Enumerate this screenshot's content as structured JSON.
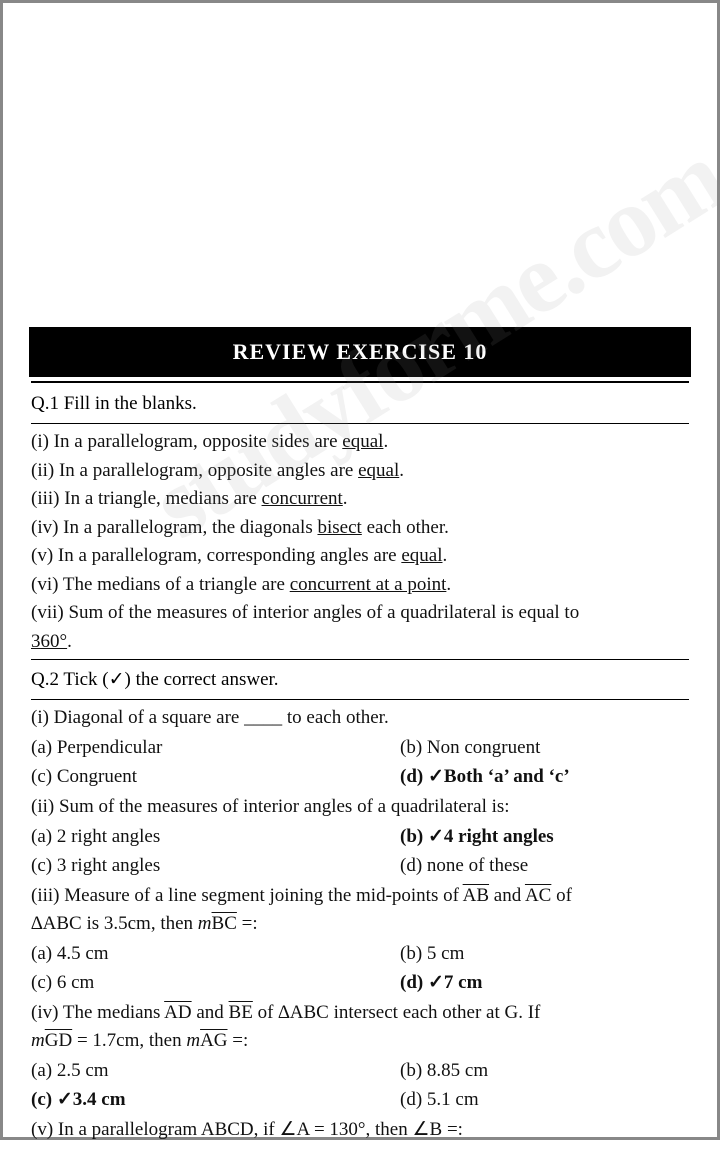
{
  "watermark": "studyforme.com",
  "title": "REVIEW EXERCISE 10",
  "colors": {
    "text": "#111111",
    "bg": "#ffffff",
    "banner_bg": "#000000",
    "banner_text": "#ffffff",
    "border": "#888888"
  },
  "typography": {
    "family": "Times New Roman",
    "body_size_pt": 15,
    "title_size_pt": 17,
    "title_weight": "bold"
  },
  "q1": {
    "heading": "Q.1 Fill in the blanks.",
    "items": [
      {
        "pre": "(i) In a parallelogram, opposite sides are",
        "ans": "equal"
      },
      {
        "pre": "(ii) In a parallelogram, opposite angles are",
        "ans": "equal"
      },
      {
        "pre": "(iii) In a triangle, medians are",
        "ans": "concurrent"
      },
      {
        "pre": "(iv) In a parallelogram, the diagonals",
        "ans": "bisect",
        "post": "each other."
      },
      {
        "pre": "(v) In a parallelogram, corresponding angles are",
        "ans": "equal"
      },
      {
        "pre": "(vi) The medians of a triangle are",
        "ans": "concurrent at a point"
      },
      {
        "pre": "(vii) Sum of the measures of interior angles of a quadrilateral is equal to",
        "ans": "360°"
      }
    ]
  },
  "q2": {
    "heading": "Q.2 Tick (✓) the correct answer.",
    "i": {
      "stem": "(i) Diagonal of a square are ____ to each other.",
      "a": "(a) Perpendicular",
      "b": "(b) Non congruent",
      "c": "(c) Congruent",
      "d": "(d) ✓Both ‘a’ and ‘c’"
    },
    "ii": {
      "stem": "(ii) Sum of the measures of interior angles of a quadrilateral is:",
      "a": "(a) 2 right angles",
      "b": "(b) ✓4 right angles",
      "c": "(c) 3 right angles",
      "d": "(d) none of these"
    },
    "iii": {
      "a": "(a) 4.5 cm",
      "b": "(b) 5 cm",
      "c": "(c) 6 cm",
      "d": "(d) ✓7 cm"
    },
    "iv": {
      "a": "(a) 2.5 cm",
      "b": "(b) 8.85 cm",
      "c": "(c) ✓3.4 cm",
      "d": "(d) 5.1 cm"
    },
    "v": {
      "stem": "(v) In a parallelogram ABCD, if ∠A = 130°, then ∠B =:"
    }
  }
}
